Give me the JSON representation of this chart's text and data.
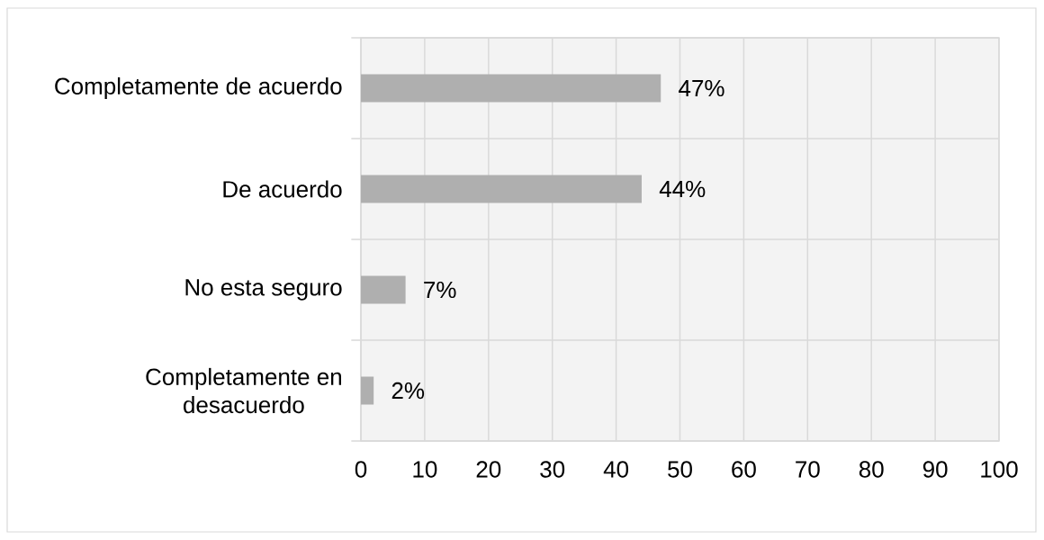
{
  "chart_data": {
    "type": "bar",
    "orientation": "horizontal",
    "categories": [
      "Completamente de acuerdo",
      "De acuerdo",
      "No esta seguro",
      "Completamente en desacuerdo"
    ],
    "values": [
      47,
      44,
      7,
      2
    ],
    "value_labels": [
      "47%",
      "44%",
      "7%",
      "2%"
    ],
    "color": "#afafaf",
    "xlim": [
      0,
      100
    ],
    "xticks": [
      0,
      10,
      20,
      30,
      40,
      50,
      60,
      70,
      80,
      90,
      100
    ],
    "grid": true
  }
}
